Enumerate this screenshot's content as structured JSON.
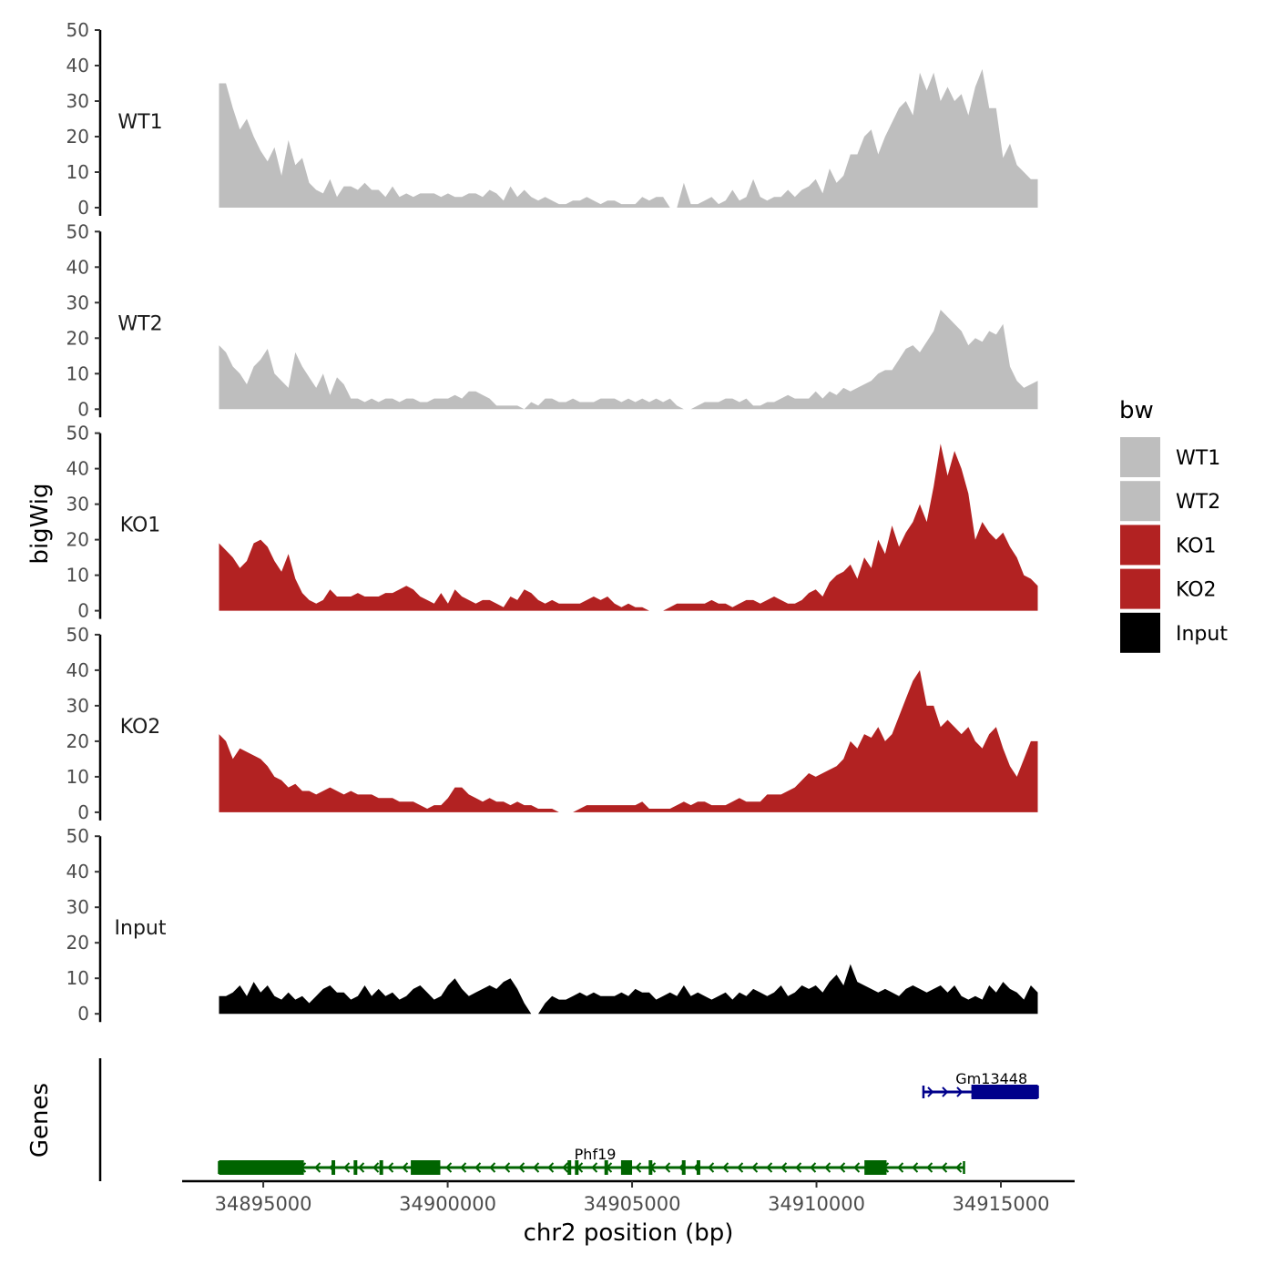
{
  "chart_data": {
    "type": "area",
    "title": "",
    "ylabel": "bigWig",
    "xlabel": "chr2 position (bp)",
    "genes_label": "Genes",
    "ylim": [
      0,
      50
    ],
    "yticks": [
      "0",
      "10",
      "20",
      "30",
      "40",
      "50"
    ],
    "xlim": [
      34892800,
      34917000
    ],
    "xticks": [
      {
        "value": 34895000,
        "label": "34895000"
      },
      {
        "value": 34900000,
        "label": "34900000"
      },
      {
        "value": 34905000,
        "label": "34905000"
      },
      {
        "value": 34910000,
        "label": "34910000"
      },
      {
        "value": 34915000,
        "label": "34915000"
      }
    ],
    "x_range": [
      34893800,
      34916000
    ],
    "legend": {
      "title": "bw",
      "placement": "right",
      "entries": [
        {
          "label": "WT1",
          "color": "#bebebe"
        },
        {
          "label": "WT2",
          "color": "#bebebe"
        },
        {
          "label": "KO1",
          "color": "#b22222"
        },
        {
          "label": "KO2",
          "color": "#b22222"
        },
        {
          "label": "Input",
          "color": "#000000"
        }
      ]
    },
    "series": [
      {
        "name": "WT1",
        "color": "#bebebe",
        "values": [
          35,
          35,
          28,
          22,
          25,
          20,
          16,
          13,
          17,
          9,
          19,
          12,
          14,
          7,
          5,
          4,
          8,
          3,
          6,
          6,
          5,
          7,
          5,
          5,
          3,
          6,
          3,
          4,
          3,
          4,
          4,
          4,
          3,
          4,
          3,
          3,
          4,
          4,
          3,
          5,
          4,
          2,
          6,
          3,
          5,
          3,
          2,
          3,
          2,
          1,
          1,
          2,
          2,
          3,
          2,
          1,
          2,
          2,
          1,
          1,
          1,
          3,
          2,
          3,
          3,
          0,
          0,
          7,
          1,
          1,
          2,
          3,
          1,
          2,
          5,
          2,
          3,
          8,
          3,
          2,
          3,
          3,
          5,
          3,
          5,
          6,
          8,
          4,
          11,
          7,
          9,
          15,
          15,
          20,
          22,
          15,
          20,
          24,
          28,
          30,
          26,
          38,
          33,
          38,
          30,
          34,
          30,
          32,
          26,
          34,
          39,
          28,
          28,
          14,
          18,
          12,
          10,
          8,
          8
        ]
      },
      {
        "name": "WT2",
        "color": "#bebebe",
        "values": [
          18,
          16,
          12,
          10,
          7,
          12,
          14,
          17,
          10,
          8,
          6,
          16,
          12,
          9,
          6,
          10,
          4,
          9,
          7,
          3,
          3,
          2,
          3,
          2,
          3,
          3,
          2,
          3,
          3,
          2,
          2,
          3,
          3,
          3,
          4,
          3,
          5,
          5,
          4,
          3,
          1,
          1,
          1,
          1,
          0,
          2,
          1,
          3,
          3,
          2,
          2,
          3,
          2,
          2,
          2,
          3,
          3,
          3,
          2,
          3,
          2,
          3,
          2,
          3,
          2,
          3,
          1,
          0,
          0,
          1,
          2,
          2,
          2,
          3,
          3,
          2,
          3,
          1,
          1,
          2,
          2,
          3,
          4,
          3,
          3,
          3,
          5,
          3,
          5,
          4,
          6,
          5,
          6,
          7,
          8,
          10,
          11,
          11,
          14,
          17,
          18,
          16,
          19,
          22,
          28,
          26,
          24,
          22,
          18,
          20,
          19,
          22,
          21,
          24,
          12,
          8,
          6,
          7,
          8
        ]
      },
      {
        "name": "KO1",
        "color": "#b22222",
        "values": [
          19,
          17,
          15,
          12,
          14,
          19,
          20,
          18,
          14,
          11,
          16,
          9,
          5,
          3,
          2,
          3,
          6,
          4,
          4,
          4,
          5,
          4,
          4,
          4,
          5,
          5,
          6,
          7,
          6,
          4,
          3,
          2,
          5,
          2,
          6,
          4,
          3,
          2,
          3,
          3,
          2,
          1,
          4,
          3,
          6,
          5,
          3,
          2,
          3,
          2,
          2,
          2,
          2,
          3,
          4,
          3,
          4,
          2,
          1,
          2,
          1,
          1,
          0,
          0,
          0,
          1,
          2,
          2,
          2,
          2,
          2,
          3,
          2,
          2,
          1,
          2,
          3,
          3,
          2,
          3,
          4,
          3,
          2,
          2,
          3,
          5,
          6,
          4,
          8,
          10,
          11,
          13,
          9,
          15,
          12,
          20,
          16,
          24,
          18,
          22,
          25,
          30,
          25,
          35,
          47,
          38,
          45,
          40,
          33,
          20,
          25,
          22,
          20,
          22,
          18,
          15,
          10,
          9,
          7
        ]
      },
      {
        "name": "KO2",
        "color": "#b22222",
        "values": [
          22,
          20,
          15,
          18,
          17,
          16,
          15,
          13,
          10,
          9,
          7,
          8,
          6,
          6,
          5,
          6,
          7,
          6,
          5,
          6,
          5,
          5,
          5,
          4,
          4,
          4,
          3,
          3,
          3,
          2,
          1,
          2,
          2,
          4,
          7,
          7,
          5,
          4,
          3,
          4,
          3,
          3,
          2,
          3,
          2,
          2,
          1,
          1,
          1,
          0,
          0,
          0,
          1,
          2,
          2,
          2,
          2,
          2,
          2,
          2,
          2,
          3,
          1,
          1,
          1,
          1,
          2,
          3,
          2,
          3,
          3,
          2,
          2,
          2,
          3,
          4,
          3,
          3,
          3,
          5,
          5,
          5,
          6,
          7,
          9,
          11,
          10,
          11,
          12,
          13,
          15,
          20,
          18,
          22,
          21,
          24,
          20,
          22,
          27,
          32,
          37,
          40,
          30,
          30,
          24,
          26,
          24,
          22,
          24,
          20,
          18,
          22,
          24,
          18,
          13,
          10,
          15,
          20,
          20
        ]
      },
      {
        "name": "Input",
        "color": "#000000",
        "values": [
          5,
          5,
          6,
          8,
          5,
          9,
          6,
          8,
          5,
          4,
          6,
          4,
          5,
          3,
          5,
          7,
          8,
          6,
          6,
          4,
          5,
          8,
          5,
          7,
          5,
          6,
          4,
          5,
          7,
          8,
          6,
          4,
          5,
          8,
          10,
          7,
          5,
          6,
          7,
          8,
          7,
          9,
          10,
          7,
          3,
          0,
          0,
          3,
          5,
          4,
          4,
          5,
          6,
          5,
          6,
          5,
          5,
          5,
          6,
          5,
          7,
          6,
          6,
          4,
          5,
          6,
          5,
          8,
          5,
          6,
          5,
          4,
          5,
          6,
          4,
          6,
          5,
          7,
          6,
          5,
          6,
          8,
          5,
          6,
          8,
          7,
          8,
          6,
          9,
          11,
          8,
          14,
          9,
          8,
          7,
          6,
          7,
          6,
          5,
          7,
          8,
          7,
          6,
          7,
          8,
          6,
          8,
          5,
          4,
          5,
          4,
          8,
          6,
          9,
          7,
          6,
          4,
          8,
          6
        ]
      }
    ],
    "genes": [
      {
        "name": "Gm13448",
        "color": "#00008b",
        "strand": "+",
        "start": 34912900,
        "end": 34916000,
        "exons": [
          [
            34914200,
            34916000
          ]
        ]
      },
      {
        "name": "Phf19",
        "color": "#006400",
        "strand": "-",
        "start": 34893800,
        "end": 34914000,
        "exons": [
          [
            34893800,
            34896100
          ],
          [
            34899000,
            34899800
          ],
          [
            34904700,
            34905000
          ],
          [
            34911300,
            34911900
          ]
        ],
        "small_exons": [
          34896900,
          34897500,
          34898200,
          34903300,
          34903500,
          34904300,
          34905500,
          34906400,
          34906800
        ]
      }
    ]
  }
}
